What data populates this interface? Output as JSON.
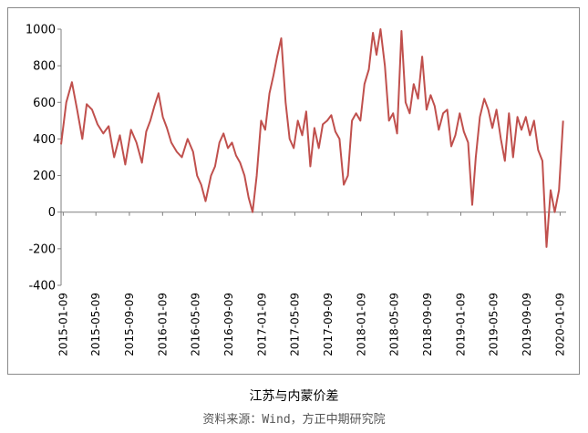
{
  "chart_data": {
    "type": "line",
    "title": "",
    "xlabel": "",
    "ylabel": "",
    "ylim": [
      -400,
      1000
    ],
    "yticks": [
      -400,
      -200,
      0,
      200,
      400,
      600,
      800,
      1000
    ],
    "xlim": [
      "2015-01-01",
      "2020-01-31"
    ],
    "xticks": [
      "2015-01-09",
      "2015-05-09",
      "2015-09-09",
      "2016-01-09",
      "2016-05-09",
      "2016-09-09",
      "2017-01-09",
      "2017-05-09",
      "2017-09-09",
      "2018-01-09",
      "2018-05-09",
      "2018-09-09",
      "2019-01-09",
      "2019-05-09",
      "2019-09-09",
      "2020-01-09"
    ],
    "grid": false,
    "legend": "none",
    "series": [
      {
        "color": "#c0504d",
        "x": [
          "2015-01-01",
          "2015-01-20",
          "2015-02-10",
          "2015-03-01",
          "2015-03-20",
          "2015-04-05",
          "2015-04-25",
          "2015-05-15",
          "2015-06-05",
          "2015-06-25",
          "2015-07-15",
          "2015-08-05",
          "2015-08-25",
          "2015-09-15",
          "2015-10-05",
          "2015-10-25",
          "2015-11-10",
          "2015-11-25",
          "2015-12-10",
          "2015-12-25",
          "2016-01-10",
          "2016-01-25",
          "2016-02-10",
          "2016-03-01",
          "2016-03-20",
          "2016-04-10",
          "2016-04-30",
          "2016-05-15",
          "2016-05-30",
          "2016-06-15",
          "2016-07-05",
          "2016-07-20",
          "2016-08-05",
          "2016-08-20",
          "2016-09-05",
          "2016-09-20",
          "2016-10-05",
          "2016-10-20",
          "2016-11-05",
          "2016-11-20",
          "2016-12-05",
          "2016-12-20",
          "2017-01-05",
          "2017-01-20",
          "2017-02-05",
          "2017-02-20",
          "2017-03-05",
          "2017-03-20",
          "2017-04-05",
          "2017-04-20",
          "2017-05-05",
          "2017-05-20",
          "2017-06-05",
          "2017-06-20",
          "2017-07-05",
          "2017-07-20",
          "2017-08-05",
          "2017-08-20",
          "2017-09-05",
          "2017-09-20",
          "2017-10-05",
          "2017-10-20",
          "2017-11-05",
          "2017-11-20",
          "2017-12-05",
          "2017-12-20",
          "2018-01-05",
          "2018-01-20",
          "2018-02-05",
          "2018-02-20",
          "2018-03-05",
          "2018-03-20",
          "2018-04-05",
          "2018-04-20",
          "2018-05-05",
          "2018-05-20",
          "2018-06-05",
          "2018-06-20",
          "2018-07-05",
          "2018-07-20",
          "2018-08-05",
          "2018-08-20",
          "2018-09-05",
          "2018-09-20",
          "2018-10-05",
          "2018-10-20",
          "2018-11-05",
          "2018-11-20",
          "2018-12-05",
          "2018-12-20",
          "2019-01-05",
          "2019-01-20",
          "2019-02-05",
          "2019-02-20",
          "2019-03-05",
          "2019-03-20",
          "2019-04-05",
          "2019-04-20",
          "2019-05-05",
          "2019-05-20",
          "2019-06-05",
          "2019-06-20",
          "2019-07-05",
          "2019-07-20",
          "2019-08-05",
          "2019-08-20",
          "2019-09-05",
          "2019-09-20",
          "2019-10-05",
          "2019-10-20",
          "2019-11-05",
          "2019-11-20",
          "2019-12-05",
          "2019-12-20",
          "2020-01-05",
          "2020-01-20"
        ],
        "values": [
          370,
          600,
          710,
          560,
          400,
          590,
          560,
          480,
          430,
          470,
          300,
          420,
          260,
          450,
          380,
          270,
          440,
          500,
          580,
          650,
          520,
          460,
          380,
          330,
          300,
          400,
          330,
          200,
          150,
          60,
          200,
          250,
          380,
          430,
          350,
          380,
          310,
          270,
          200,
          80,
          0,
          200,
          500,
          450,
          650,
          750,
          850,
          950,
          600,
          400,
          350,
          500,
          420,
          550,
          250,
          460,
          350,
          480,
          500,
          530,
          440,
          400,
          150,
          200,
          500,
          540,
          500,
          700,
          780,
          980,
          860,
          1000,
          800,
          500,
          540,
          430,
          990,
          600,
          540,
          700,
          620,
          850,
          560,
          640,
          580,
          450,
          540,
          560,
          360,
          420,
          540,
          440,
          380,
          40,
          300,
          520,
          620,
          560,
          460,
          560,
          400,
          280,
          540,
          300,
          520,
          450,
          520,
          420,
          500,
          340,
          280,
          -190,
          120,
          0,
          120,
          500
        ]
      }
    ],
    "caption": "江苏与内蒙价差",
    "source": "资料来源：Wind，方正中期研究院"
  }
}
